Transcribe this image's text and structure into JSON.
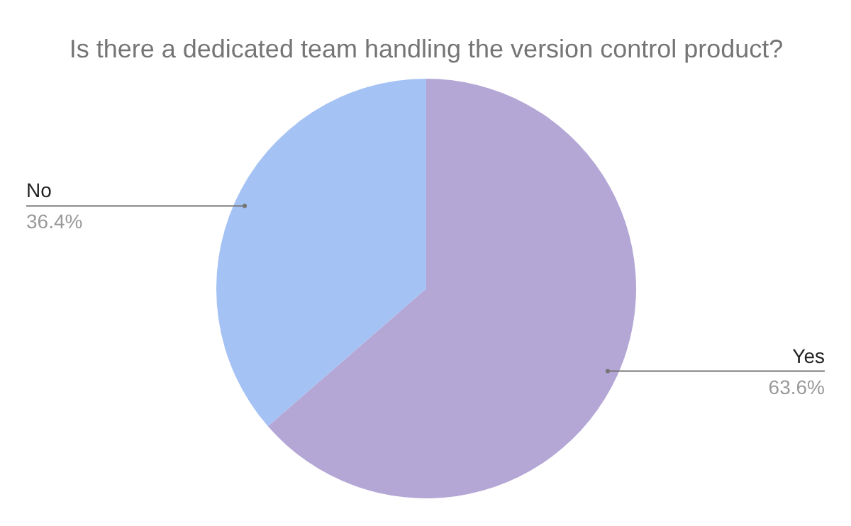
{
  "chart_data": {
    "type": "pie",
    "title": "Is there a dedicated team handling the version control product?",
    "categories": [
      "Yes",
      "No"
    ],
    "values": [
      63.6,
      36.4
    ],
    "colors": [
      "#b4a7d6",
      "#a4c2f4"
    ],
    "value_labels": [
      "63.6%",
      "36.4%"
    ]
  }
}
